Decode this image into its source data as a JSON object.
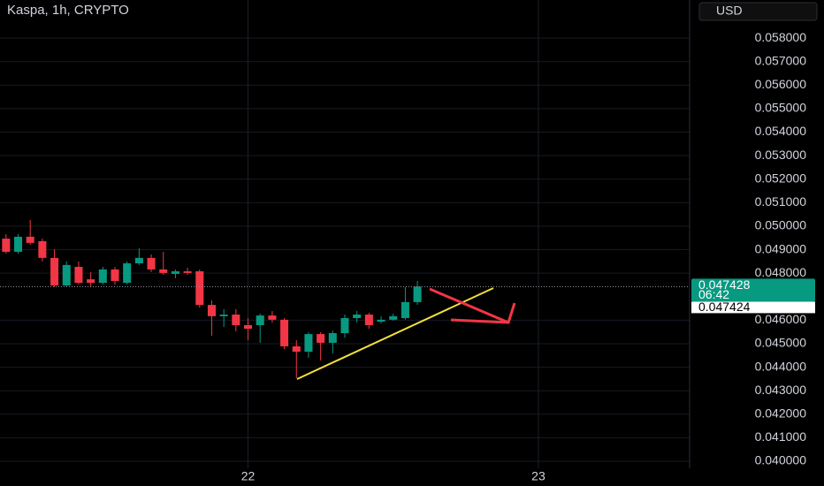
{
  "chart_data": {
    "type": "candlestick",
    "title": "Kaspa, 1h, CRYPTO",
    "currency": "USD",
    "categories": [
      null,
      null,
      null,
      null,
      null,
      null,
      null,
      null,
      null,
      null,
      null,
      null,
      null,
      null,
      null,
      null,
      null,
      null,
      null,
      null,
      null,
      null,
      null,
      null,
      null,
      null,
      null,
      null,
      null,
      null,
      null,
      null,
      null,
      null,
      null
    ],
    "open": [
      0.04947,
      0.04891,
      0.04955,
      0.04936,
      0.04865,
      0.04748,
      0.04827,
      0.04774,
      0.04759,
      0.04816,
      0.04759,
      0.04842,
      0.04865,
      0.04816,
      0.04797,
      0.04808,
      0.04808,
      0.04665,
      0.04617,
      0.04624,
      0.04579,
      0.04579,
      0.0462,
      0.04602,
      0.04489,
      0.04466,
      0.04541,
      0.04504,
      0.04545,
      0.04609,
      0.04624,
      0.04594,
      0.04602,
      0.04609,
      0.04677
    ],
    "high": [
      0.04966,
      0.04966,
      0.05026,
      0.04947,
      0.04902,
      0.0485,
      0.0485,
      0.04805,
      0.04827,
      0.04827,
      0.0485,
      0.04906,
      0.0488,
      0.04891,
      0.04816,
      0.04823,
      0.04816,
      0.04684,
      0.04647,
      0.04647,
      0.04609,
      0.04628,
      0.04639,
      0.04609,
      0.04515,
      0.04549,
      0.04549,
      0.04556,
      0.04624,
      0.04639,
      0.04632,
      0.04617,
      0.04628,
      0.04741,
      0.04767
    ],
    "low": [
      0.04883,
      0.04883,
      0.04921,
      0.0485,
      0.04741,
      0.04741,
      0.04752,
      0.04741,
      0.04752,
      0.04752,
      0.04752,
      0.04835,
      0.04805,
      0.04793,
      0.04778,
      0.04793,
      0.04654,
      0.04534,
      0.04571,
      0.04553,
      0.04515,
      0.04504,
      0.0459,
      0.04477,
      0.04353,
      0.0444,
      0.04429,
      0.04459,
      0.04526,
      0.0459,
      0.04564,
      0.04586,
      0.04598,
      0.04602,
      0.04665
    ],
    "close": [
      0.04891,
      0.04955,
      0.04929,
      0.04865,
      0.04748,
      0.04835,
      0.04759,
      0.04759,
      0.04816,
      0.04767,
      0.04842,
      0.04865,
      0.04816,
      0.04801,
      0.04808,
      0.04801,
      0.04665,
      0.04617,
      0.04624,
      0.04579,
      0.04564,
      0.0462,
      0.04602,
      0.04489,
      0.04466,
      0.04541,
      0.04504,
      0.04545,
      0.04609,
      0.04624,
      0.04579,
      0.04602,
      0.04617,
      0.04677,
      0.047428
    ],
    "up_color": "#089981",
    "down_color": "#f23645",
    "last_price": 0.047428,
    "countdown": "06:42",
    "bid_price": 0.047424,
    "xlim": [
      -0.5,
      56.5
    ],
    "xticks": [
      {
        "value": 20,
        "label": "22"
      },
      {
        "value": 44,
        "label": "23"
      }
    ],
    "ylim": [
      0.0397,
      0.05962
    ],
    "yticks": [
      {
        "value": 0.04,
        "label": "0.040000"
      },
      {
        "value": 0.041,
        "label": "0.041000"
      },
      {
        "value": 0.042,
        "label": "0.042000"
      },
      {
        "value": 0.043,
        "label": "0.043000"
      },
      {
        "value": 0.044,
        "label": "0.044000"
      },
      {
        "value": 0.045,
        "label": "0.045000"
      },
      {
        "value": 0.046,
        "label": "0.046000"
      },
      {
        "value": 0.048,
        "label": "0.048000"
      },
      {
        "value": 0.049,
        "label": "0.049000"
      },
      {
        "value": 0.05,
        "label": "0.050000"
      },
      {
        "value": 0.051,
        "label": "0.051000"
      },
      {
        "value": 0.052,
        "label": "0.052000"
      },
      {
        "value": 0.053,
        "label": "0.053000"
      },
      {
        "value": 0.054,
        "label": "0.054000"
      },
      {
        "value": 0.055,
        "label": "0.055000"
      },
      {
        "value": 0.056,
        "label": "0.056000"
      },
      {
        "value": 0.057,
        "label": "0.057000"
      },
      {
        "value": 0.058,
        "label": "0.058000"
      }
    ],
    "grid": true
  }
}
